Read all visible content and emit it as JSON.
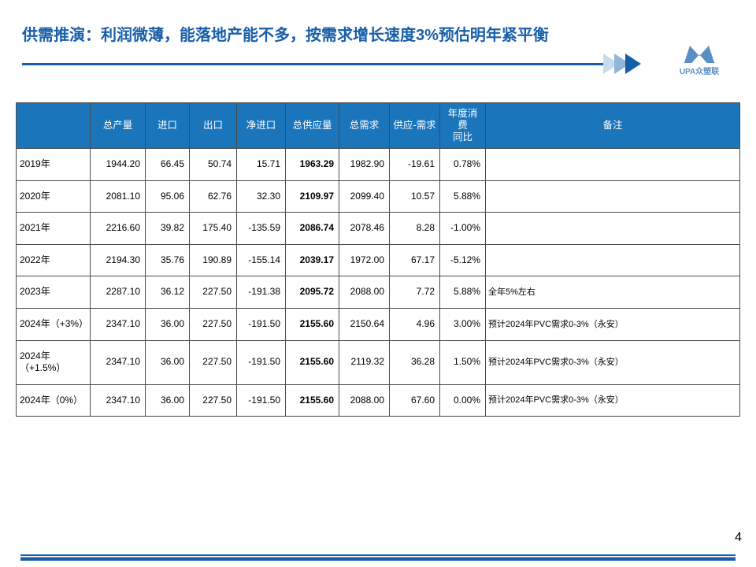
{
  "title": "供需推演：利润微薄，能落地产能不多，按需求增长速度3%预估明年紧平衡",
  "logo_text": "UPA众塑联",
  "page_number": "4",
  "table": {
    "header_bg": "#1b75bb",
    "header_color": "#ffffff",
    "border_color": "#4a4a4a",
    "font_size": 12,
    "columns": [
      "",
      "总产量",
      "进口",
      "出口",
      "净进口",
      "总供应量",
      "总需求",
      "供应-需求",
      "年度消费\n同比",
      "备注"
    ],
    "rows": [
      {
        "label": "2019年",
        "c1": "1944.20",
        "c2": "66.45",
        "c3": "50.74",
        "c4": "15.71",
        "c5": "1963.29",
        "c6": "1982.90",
        "c7": "-19.61",
        "c8": "0.78%",
        "remark": ""
      },
      {
        "label": "2020年",
        "c1": "2081.10",
        "c2": "95.06",
        "c3": "62.76",
        "c4": "32.30",
        "c5": "2109.97",
        "c6": "2099.40",
        "c7": "10.57",
        "c8": "5.88%",
        "remark": ""
      },
      {
        "label": "2021年",
        "c1": "2216.60",
        "c2": "39.82",
        "c3": "175.40",
        "c4": "-135.59",
        "c5": "2086.74",
        "c6": "2078.46",
        "c7": "8.28",
        "c8": "-1.00%",
        "remark": ""
      },
      {
        "label": "2022年",
        "c1": "2194.30",
        "c2": "35.76",
        "c3": "190.89",
        "c4": "-155.14",
        "c5": "2039.17",
        "c6": "1972.00",
        "c7": "67.17",
        "c8": "-5.12%",
        "remark": ""
      },
      {
        "label": "2023年",
        "c1": "2287.10",
        "c2": "36.12",
        "c3": "227.50",
        "c4": "-191.38",
        "c5": "2095.72",
        "c6": "2088.00",
        "c7": "7.72",
        "c8": "5.88%",
        "remark": "全年5%左右"
      },
      {
        "label": "2024年（+3%）",
        "c1": "2347.10",
        "c2": "36.00",
        "c3": "227.50",
        "c4": "-191.50",
        "c5": "2155.60",
        "c6": "2150.64",
        "c7": "4.96",
        "c8": "3.00%",
        "remark": "预计2024年PVC需求0-3%（永安）"
      },
      {
        "label": "2024年（+1.5%）",
        "c1": "2347.10",
        "c2": "36.00",
        "c3": "227.50",
        "c4": "-191.50",
        "c5": "2155.60",
        "c6": "2119.32",
        "c7": "36.28",
        "c8": "1.50%",
        "remark": "预计2024年PVC需求0-3%（永安）"
      },
      {
        "label": "2024年（0%）",
        "c1": "2347.10",
        "c2": "36.00",
        "c3": "227.50",
        "c4": "-191.50",
        "c5": "2155.60",
        "c6": "2088.00",
        "c7": "67.60",
        "c8": "0.00%",
        "remark": "预计2024年PVC需求0-3%（永安）"
      }
    ],
    "col_widths": [
      "94px",
      "70px",
      "56px",
      "60px",
      "62px",
      "68px",
      "64px",
      "64px",
      "58px",
      "auto"
    ]
  },
  "colors": {
    "title_color": "#185fa9",
    "arrow_colors": [
      "#c9daeb",
      "#8fb7db",
      "#185fa9"
    ],
    "logo_color": "#5a8fc4"
  }
}
